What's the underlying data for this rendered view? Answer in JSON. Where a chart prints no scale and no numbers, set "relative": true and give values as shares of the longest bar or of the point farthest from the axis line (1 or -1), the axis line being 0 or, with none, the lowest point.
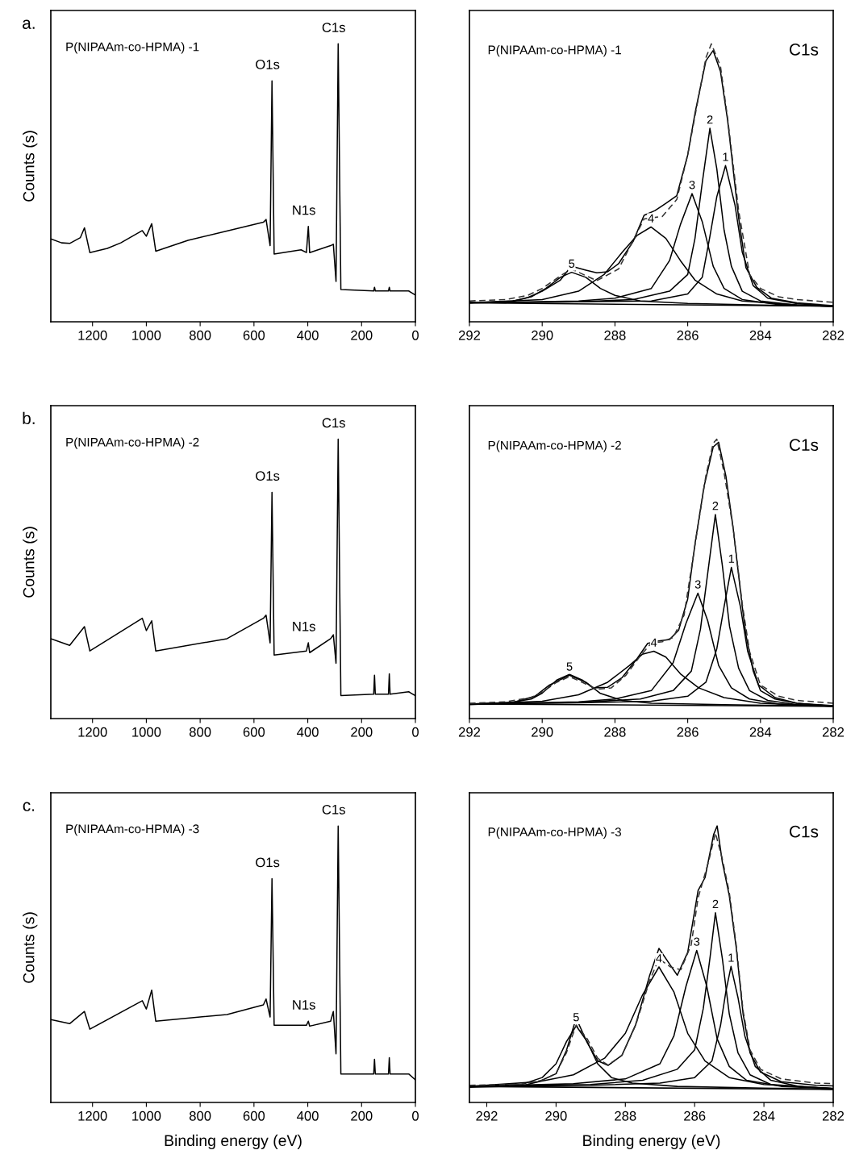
{
  "chart_data": [
    {
      "type": "line",
      "relative": true,
      "xlim": [
        1355,
        0
      ],
      "xticks": [
        1200,
        1000,
        800,
        600,
        400,
        200,
        0
      ],
      "ylabel": "Counts (s)",
      "annotations": [
        "a.",
        "P(NIPAAm-co-HPMA) -1",
        {
          "text": "O1s",
          "x": 533,
          "y": 0.867
        },
        {
          "text": "N1s",
          "x": 398,
          "y": 0.343
        },
        {
          "text": "C1s",
          "x": 287,
          "y": 1.0
        }
      ],
      "series": [
        {
          "color": "#000000",
          "x": [
            1355,
            1315,
            1285,
            1245,
            1230,
            1210,
            1145,
            1095,
            1015,
            1000,
            980,
            965,
            845,
            695,
            565,
            555,
            540,
            533,
            525,
            425,
            405,
            398,
            393,
            315,
            305,
            295,
            287,
            277,
            155,
            152,
            149,
            100,
            97,
            94,
            25,
            0
          ],
          "values": [
            0.298,
            0.284,
            0.282,
            0.303,
            0.338,
            0.249,
            0.264,
            0.284,
            0.328,
            0.308,
            0.353,
            0.254,
            0.293,
            0.328,
            0.358,
            0.368,
            0.274,
            0.867,
            0.244,
            0.259,
            0.249,
            0.343,
            0.249,
            0.274,
            0.279,
            0.145,
            1.0,
            0.116,
            0.111,
            0.124,
            0.111,
            0.111,
            0.124,
            0.111,
            0.111,
            0.096
          ]
        }
      ]
    },
    {
      "type": "line",
      "relative": true,
      "xlim": [
        292,
        282
      ],
      "xticks": [
        292,
        290,
        288,
        286,
        284,
        282
      ],
      "annotations": [
        "P(NIPAAm-co-HPMA) -1",
        "C1s"
      ],
      "series": [
        {
          "color": "#000000",
          "x": [
            292,
            282
          ],
          "values": [
            0.068,
            0.056
          ]
        },
        {
          "name": "1",
          "color": "#000000",
          "x": [
            292,
            287,
            286,
            285.6,
            285.4,
            285.2,
            284.96,
            284.7,
            284.5,
            284.2,
            283.8,
            283,
            282
          ],
          "values": [
            0.068,
            0.075,
            0.1,
            0.16,
            0.3,
            0.45,
            0.562,
            0.42,
            0.25,
            0.13,
            0.085,
            0.065,
            0.056
          ]
        },
        {
          "name": "2",
          "color": "#000000",
          "x": [
            292,
            289,
            287.5,
            286.5,
            286,
            285.8,
            285.6,
            285.39,
            285.2,
            285,
            284.8,
            284.5,
            284,
            283,
            282
          ],
          "values": [
            0.068,
            0.072,
            0.08,
            0.11,
            0.17,
            0.3,
            0.5,
            0.696,
            0.55,
            0.33,
            0.2,
            0.11,
            0.075,
            0.06,
            0.056
          ]
        },
        {
          "name": "3",
          "color": "#000000",
          "x": [
            292,
            289,
            288,
            287,
            286.5,
            286.2,
            285.88,
            285.6,
            285.3,
            285,
            284.5,
            283.5,
            282
          ],
          "values": [
            0.068,
            0.075,
            0.085,
            0.12,
            0.22,
            0.35,
            0.461,
            0.36,
            0.2,
            0.12,
            0.08,
            0.062,
            0.056
          ]
        },
        {
          "name": "4",
          "color": "#000000",
          "x": [
            292,
            290,
            289,
            288.3,
            287.8,
            287.4,
            287.01,
            286.6,
            286.2,
            285.8,
            285.2,
            284.5,
            283,
            282
          ],
          "values": [
            0.068,
            0.08,
            0.11,
            0.17,
            0.25,
            0.31,
            0.341,
            0.3,
            0.22,
            0.15,
            0.1,
            0.075,
            0.06,
            0.056
          ]
        },
        {
          "name": "5",
          "color": "#000000",
          "x": [
            292,
            290.8,
            290.3,
            289.9,
            289.5,
            289.19,
            288.8,
            288.4,
            288,
            287.3,
            286,
            284,
            282
          ],
          "values": [
            0.068,
            0.075,
            0.09,
            0.12,
            0.16,
            0.178,
            0.16,
            0.12,
            0.095,
            0.075,
            0.066,
            0.06,
            0.056
          ]
        },
        {
          "color": "#000000",
          "x": [
            292,
            291,
            290.4,
            290,
            289.5,
            289.2,
            288.8,
            288.5,
            288.2,
            287.9,
            287.5,
            287.2,
            286.9,
            286.6,
            286.3,
            286,
            285.8,
            285.5,
            285.3,
            285.1,
            284.9,
            284.6,
            284.4,
            284.1,
            283.7,
            283,
            282
          ],
          "values": [
            0.07,
            0.068,
            0.087,
            0.11,
            0.15,
            0.2,
            0.186,
            0.176,
            0.18,
            0.209,
            0.289,
            0.383,
            0.4,
            0.426,
            0.454,
            0.6,
            0.75,
            0.939,
            0.976,
            0.901,
            0.722,
            0.374,
            0.195,
            0.124,
            0.085,
            0.068,
            0.058
          ]
        },
        {
          "color": "#333333",
          "line_style": "dashed",
          "x": [
            292,
            291,
            290.4,
            290,
            289.5,
            289.2,
            288.5,
            287.9,
            287.2,
            286.7,
            286.3,
            286,
            285.5,
            285.35,
            285.1,
            284.9,
            284.6,
            284.3,
            284,
            283.5,
            283,
            282
          ],
          "values": [
            0.075,
            0.08,
            0.095,
            0.12,
            0.165,
            0.19,
            0.148,
            0.19,
            0.37,
            0.379,
            0.44,
            0.6,
            0.95,
            1.0,
            0.92,
            0.73,
            0.4,
            0.17,
            0.12,
            0.09,
            0.08,
            0.07
          ]
        }
      ]
    },
    {
      "type": "line",
      "relative": true,
      "xlim": [
        1355,
        0
      ],
      "xticks": [
        1200,
        1000,
        800,
        600,
        400,
        200,
        0
      ],
      "ylabel": "Counts (s)",
      "annotations": [
        "b.",
        "P(NIPAAm-co-HPMA) -2",
        {
          "text": "O1s",
          "x": 533,
          "y": 0.81
        },
        {
          "text": "N1s",
          "x": 398,
          "y": 0.271
        },
        {
          "text": "C1s",
          "x": 287,
          "y": 1.0
        }
      ],
      "series": [
        {
          "color": "#000000",
          "x": [
            1355,
            1285,
            1230,
            1210,
            1015,
            1000,
            980,
            965,
            700,
            565,
            555,
            540,
            533,
            525,
            405,
            398,
            393,
            315,
            305,
            295,
            287,
            277,
            155,
            152,
            149,
            100,
            97,
            94,
            25,
            0
          ],
          "values": [
            0.286,
            0.262,
            0.329,
            0.242,
            0.359,
            0.315,
            0.35,
            0.242,
            0.286,
            0.359,
            0.37,
            0.271,
            0.81,
            0.227,
            0.242,
            0.271,
            0.236,
            0.286,
            0.3,
            0.198,
            1.0,
            0.082,
            0.087,
            0.155,
            0.087,
            0.087,
            0.16,
            0.087,
            0.096,
            0.082
          ]
        }
      ]
    },
    {
      "type": "line",
      "relative": true,
      "xlim": [
        292,
        282
      ],
      "xticks": [
        292,
        290,
        288,
        286,
        284,
        282
      ],
      "annotations": [
        "P(NIPAAm-co-HPMA) -2",
        "C1s"
      ],
      "series": [
        {
          "color": "#000000",
          "x": [
            292,
            282
          ],
          "values": [
            0.052,
            0.044
          ]
        },
        {
          "name": "1",
          "color": "#000000",
          "x": [
            292,
            289,
            287,
            286,
            285.5,
            285.2,
            285,
            284.8,
            284.55,
            284.35,
            284.05,
            283.6,
            283,
            282
          ],
          "values": [
            0.052,
            0.056,
            0.062,
            0.08,
            0.13,
            0.25,
            0.4,
            0.541,
            0.4,
            0.24,
            0.12,
            0.075,
            0.055,
            0.044
          ]
        },
        {
          "name": "2",
          "color": "#000000",
          "x": [
            292,
            289,
            287.3,
            286.4,
            285.9,
            285.65,
            285.45,
            285.24,
            285.05,
            284.85,
            284.6,
            284.3,
            283.8,
            283,
            282
          ],
          "values": [
            0.052,
            0.058,
            0.07,
            0.1,
            0.17,
            0.32,
            0.52,
            0.73,
            0.55,
            0.33,
            0.18,
            0.1,
            0.065,
            0.05,
            0.044
          ]
        },
        {
          "name": "3",
          "color": "#000000",
          "x": [
            292,
            289,
            288,
            287,
            286.4,
            286.05,
            285.72,
            285.45,
            285.15,
            284.8,
            284.3,
            283.5,
            282
          ],
          "values": [
            0.052,
            0.06,
            0.07,
            0.1,
            0.2,
            0.34,
            0.449,
            0.35,
            0.19,
            0.11,
            0.07,
            0.052,
            0.044
          ]
        },
        {
          "name": "4",
          "color": "#000000",
          "x": [
            292,
            290,
            289,
            288.2,
            287.6,
            287.25,
            286.93,
            286.6,
            286.2,
            285.7,
            285,
            284,
            282
          ],
          "values": [
            0.052,
            0.062,
            0.085,
            0.13,
            0.19,
            0.23,
            0.241,
            0.22,
            0.16,
            0.11,
            0.075,
            0.055,
            0.044
          ]
        },
        {
          "name": "5",
          "color": "#000000",
          "x": [
            292,
            290.8,
            290.2,
            289.8,
            289.25,
            288.8,
            288.4,
            287.8,
            287,
            285,
            282
          ],
          "values": [
            0.052,
            0.058,
            0.08,
            0.12,
            0.155,
            0.13,
            0.09,
            0.065,
            0.055,
            0.05,
            0.044
          ]
        },
        {
          "color": "#000000",
          "x": [
            292,
            291,
            290.3,
            290,
            289.6,
            289.25,
            288.9,
            288.6,
            288.2,
            287.8,
            287.4,
            287.1,
            286.8,
            286.5,
            286.25,
            286,
            285.8,
            285.55,
            285.3,
            285.15,
            284.95,
            284.75,
            284.5,
            284.4,
            284.2,
            284,
            283.6,
            283,
            282
          ],
          "values": [
            0.05,
            0.055,
            0.07,
            0.091,
            0.138,
            0.158,
            0.138,
            0.11,
            0.112,
            0.147,
            0.213,
            0.269,
            0.278,
            0.283,
            0.316,
            0.428,
            0.625,
            0.831,
            0.972,
            0.989,
            0.868,
            0.681,
            0.4,
            0.3,
            0.17,
            0.1,
            0.07,
            0.055,
            0.046
          ]
        },
        {
          "color": "#333333",
          "line_style": "dashed",
          "x": [
            292,
            291,
            290.3,
            290,
            289.6,
            289.25,
            288.9,
            288.5,
            288.1,
            287.7,
            287.3,
            287,
            286.7,
            286.4,
            286.1,
            285.8,
            285.5,
            285.3,
            285.2,
            285,
            284.75,
            284.5,
            284.3,
            284,
            283.5,
            283,
            282
          ],
          "values": [
            0.055,
            0.06,
            0.075,
            0.095,
            0.13,
            0.15,
            0.13,
            0.105,
            0.11,
            0.155,
            0.225,
            0.27,
            0.275,
            0.29,
            0.37,
            0.62,
            0.87,
            0.985,
            1.0,
            0.88,
            0.68,
            0.41,
            0.24,
            0.12,
            0.08,
            0.065,
            0.055
          ]
        }
      ]
    },
    {
      "type": "line",
      "relative": true,
      "xlim": [
        1355,
        0
      ],
      "xticks": [
        1200,
        1000,
        800,
        600,
        400,
        200,
        0
      ],
      "ylabel": "Counts (s)",
      "xlabel": "Binding energy (eV)",
      "annotations": [
        "c.",
        "P(NIPAAm-co-HPMA) -3",
        {
          "text": "O1s",
          "x": 533,
          "y": 0.809
        },
        {
          "text": "N1s",
          "x": 398,
          "y": 0.294
        },
        {
          "text": "C1s",
          "x": 287,
          "y": 1.0
        }
      ],
      "series": [
        {
          "color": "#000000",
          "x": [
            1355,
            1285,
            1230,
            1210,
            1015,
            1000,
            980,
            965,
            700,
            565,
            555,
            540,
            533,
            525,
            405,
            398,
            393,
            315,
            305,
            295,
            287,
            277,
            155,
            152,
            149,
            100,
            97,
            94,
            25,
            0
          ],
          "values": [
            0.3,
            0.285,
            0.329,
            0.265,
            0.368,
            0.338,
            0.406,
            0.294,
            0.318,
            0.353,
            0.374,
            0.309,
            0.809,
            0.279,
            0.279,
            0.294,
            0.276,
            0.294,
            0.329,
            0.176,
            1.0,
            0.103,
            0.103,
            0.156,
            0.103,
            0.103,
            0.162,
            0.103,
            0.103,
            0.082
          ]
        }
      ]
    },
    {
      "type": "line",
      "relative": true,
      "xlim": [
        292.5,
        282
      ],
      "xticks": [
        292,
        290,
        288,
        286,
        284,
        282
      ],
      "xlabel": "Binding energy (eV)",
      "annotations": [
        "P(NIPAAm-co-HPMA) -3",
        "C1s"
      ],
      "series": [
        {
          "color": "#000000",
          "x": [
            292.5,
            282
          ],
          "values": [
            0.058,
            0.047
          ]
        },
        {
          "name": "1",
          "color": "#000000",
          "x": [
            292.5,
            289,
            287,
            286,
            285.5,
            285.25,
            285.1,
            284.95,
            284.75,
            284.55,
            284.25,
            283.8,
            283,
            282
          ],
          "values": [
            0.058,
            0.062,
            0.07,
            0.09,
            0.15,
            0.28,
            0.4,
            0.492,
            0.38,
            0.24,
            0.13,
            0.08,
            0.058,
            0.05
          ]
        },
        {
          "name": "2",
          "color": "#000000",
          "x": [
            292.5,
            289,
            287.5,
            286.5,
            286,
            285.75,
            285.55,
            285.4,
            285.2,
            285,
            284.75,
            284.4,
            283.8,
            282
          ],
          "values": [
            0.058,
            0.065,
            0.08,
            0.12,
            0.19,
            0.34,
            0.53,
            0.686,
            0.52,
            0.32,
            0.18,
            0.1,
            0.065,
            0.05
          ]
        },
        {
          "name": "3",
          "color": "#000000",
          "x": [
            292.5,
            289.5,
            288,
            287,
            286.6,
            286.25,
            285.94,
            285.65,
            285.35,
            285,
            284.5,
            283.5,
            282
          ],
          "values": [
            0.058,
            0.068,
            0.085,
            0.14,
            0.24,
            0.42,
            0.55,
            0.42,
            0.23,
            0.13,
            0.08,
            0.058,
            0.05
          ]
        },
        {
          "name": "4",
          "color": "#000000",
          "x": [
            292.5,
            290.5,
            289.5,
            288.6,
            288,
            287.5,
            287.03,
            286.6,
            286.2,
            285.7,
            285,
            284,
            282
          ],
          "values": [
            0.058,
            0.075,
            0.1,
            0.16,
            0.25,
            0.39,
            0.49,
            0.4,
            0.25,
            0.15,
            0.09,
            0.065,
            0.05
          ]
        },
        {
          "name": "5",
          "color": "#000000",
          "x": [
            292.5,
            291,
            290.4,
            290,
            289.7,
            289.42,
            289.1,
            288.8,
            288.4,
            287.8,
            286.5,
            284,
            282
          ],
          "values": [
            0.058,
            0.065,
            0.09,
            0.14,
            0.22,
            0.277,
            0.22,
            0.14,
            0.09,
            0.07,
            0.058,
            0.052,
            0.048
          ]
        },
        {
          "color": "#000000",
          "x": [
            292.5,
            291,
            290.5,
            290,
            289.7,
            289.42,
            289.1,
            288.8,
            288.5,
            288.1,
            287.7,
            287.3,
            287.03,
            286.7,
            286.5,
            286.2,
            285.9,
            285.7,
            285.45,
            285.35,
            285.2,
            285,
            284.8,
            284.6,
            284.4,
            284.1,
            283.5,
            282.5,
            282
          ],
          "values": [
            0.055,
            0.06,
            0.075,
            0.104,
            0.188,
            0.305,
            0.216,
            0.151,
            0.134,
            0.17,
            0.282,
            0.459,
            0.557,
            0.496,
            0.46,
            0.543,
            0.767,
            0.813,
            0.97,
            1.0,
            0.869,
            0.748,
            0.56,
            0.319,
            0.179,
            0.11,
            0.075,
            0.062,
            0.06
          ]
        },
        {
          "color": "#333333",
          "line_style": "dashed",
          "x": [
            292.5,
            291,
            290.4,
            290,
            289.7,
            289.42,
            289.1,
            288.8,
            288.5,
            288.1,
            287.7,
            287.3,
            287.03,
            286.7,
            286.4,
            286.1,
            285.9,
            285.6,
            285.4,
            285.2,
            285,
            284.8,
            284.6,
            284.4,
            284.1,
            283.5,
            282.5,
            282
          ],
          "values": [
            0.062,
            0.066,
            0.08,
            0.105,
            0.18,
            0.28,
            0.23,
            0.16,
            0.135,
            0.17,
            0.28,
            0.44,
            0.52,
            0.49,
            0.48,
            0.57,
            0.74,
            0.87,
            0.975,
            0.88,
            0.76,
            0.57,
            0.33,
            0.19,
            0.12,
            0.085,
            0.07,
            0.068
          ]
        }
      ]
    }
  ]
}
